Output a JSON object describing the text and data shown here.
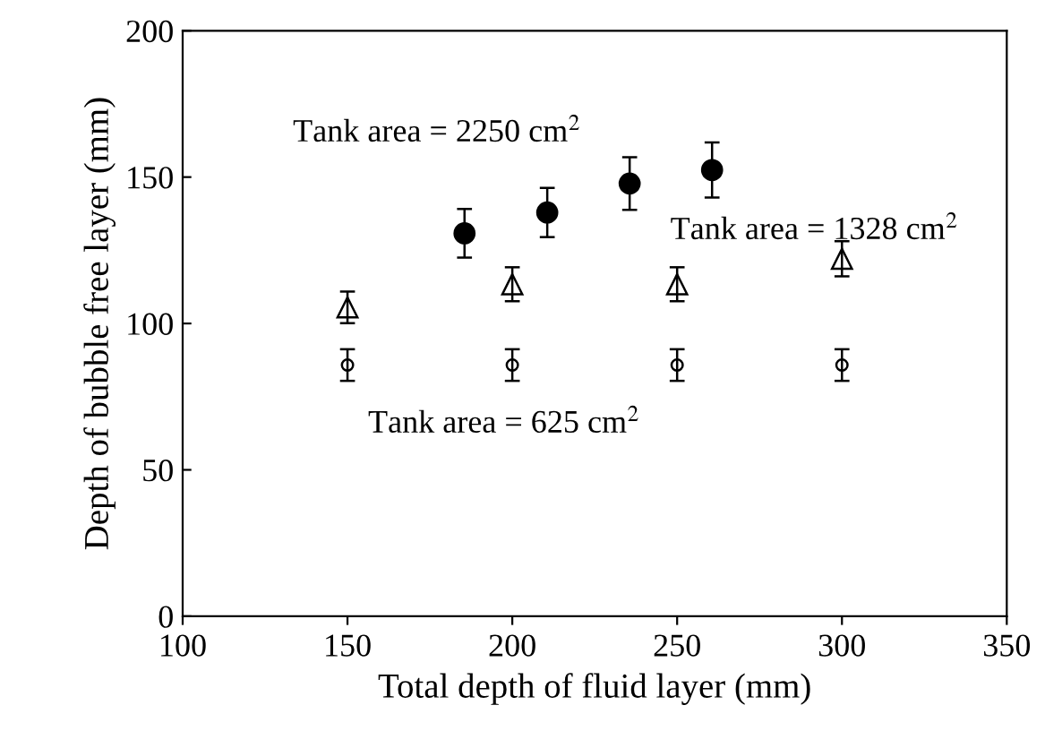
{
  "chart_data": {
    "type": "scatter",
    "xlabel": "Total depth of fluid layer (mm)",
    "ylabel": "Depth of bubble free layer (mm)",
    "xlim": [
      100,
      350
    ],
    "xticks": [
      100,
      150,
      200,
      250,
      300,
      350
    ],
    "ylim": [
      0,
      200
    ],
    "yticks": [
      0,
      50,
      100,
      150,
      200
    ],
    "grid": false,
    "legend": false,
    "series": [
      {
        "name": "Tank area = 2250 cm$^{2}$",
        "color": "#000000",
        "marker": "circle",
        "x": [
          185.5,
          210.6,
          235.6,
          260.6
        ],
        "values": [
          130.8,
          137.9,
          147.8,
          152.4
        ],
        "errors": [
          8.3,
          8.4,
          9,
          9.4
        ]
      },
      {
        "name": "Tank area = 1328 cm$^{2}$",
        "color": "#000000",
        "marker": "triangle",
        "x": [
          150,
          200,
          250,
          300
        ],
        "values": [
          105.5,
          113.4,
          113.4,
          122.1
        ],
        "errors": [
          5.4,
          5.8,
          5.8,
          6
        ]
      },
      {
        "name": "Tank area = 625 cm$^{2}$",
        "color": "#000000",
        "marker": "circle",
        "x": [
          150,
          200,
          250,
          300
        ],
        "values": [
          85.8,
          85.8,
          85.8,
          85.8
        ],
        "errors": [
          5.4,
          5.4,
          5.4,
          5.4
        ]
      }
    ]
  }
}
